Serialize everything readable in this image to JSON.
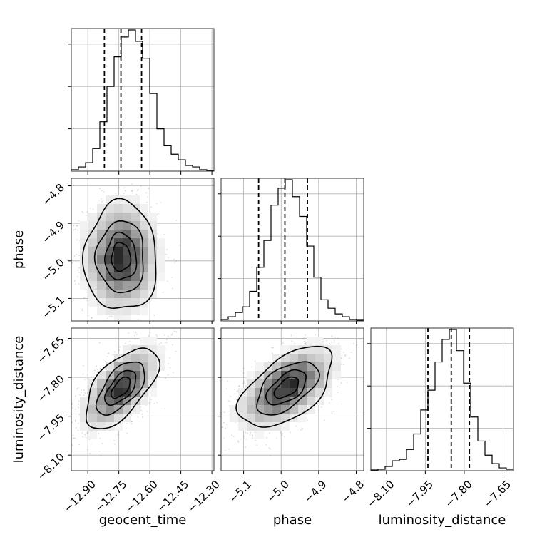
{
  "chart_data": {
    "type": "corner",
    "grid": true,
    "parameters": [
      {
        "name": "geocent_time",
        "label": "geocent_time",
        "range": [
          -12.98,
          -12.29
        ],
        "ticks": [
          -12.9,
          -12.75,
          -12.6,
          -12.45,
          -12.3
        ],
        "tick_labels": [
          "−12.90",
          "−12.75",
          "−12.60",
          "−12.45",
          "−12.30"
        ],
        "quantiles": [
          -12.82,
          -12.74,
          -12.64
        ],
        "hist": {
          "start": -12.98,
          "bin_width": 0.0345,
          "counts": [
            1,
            3,
            6,
            16,
            35,
            60,
            81,
            95,
            100,
            92,
            80,
            55,
            30,
            18,
            12,
            8,
            4,
            3,
            1,
            0.5
          ]
        }
      },
      {
        "name": "phase",
        "label": "phase",
        "range": [
          -5.16,
          -4.78
        ],
        "ticks": [
          -5.1,
          -5.0,
          -4.9,
          -4.8
        ],
        "tick_labels": [
          "−5.1",
          "−5.0",
          "−4.9",
          "−4.8"
        ],
        "quantiles": [
          -5.06,
          -4.99,
          -4.93
        ],
        "hist": {
          "start": -5.16,
          "bin_width": 0.019,
          "counts": [
            1,
            3,
            6,
            10,
            21,
            38,
            57,
            82,
            94,
            100,
            88,
            74,
            53,
            31,
            15,
            9,
            5,
            3,
            1,
            0.5
          ]
        }
      },
      {
        "name": "luminosity_distance",
        "label": "luminosity_distance",
        "range": [
          -8.16,
          -7.61
        ],
        "ticks": [
          -8.1,
          -7.95,
          -7.8,
          -7.65
        ],
        "tick_labels": [
          "−8.10",
          "−7.95",
          "−7.80",
          "−7.65"
        ],
        "quantiles": [
          -7.94,
          -7.85,
          -7.78
        ],
        "hist": {
          "start": -8.16,
          "bin_width": 0.0275,
          "counts": [
            0.5,
            1,
            3,
            7,
            8,
            15,
            26,
            43,
            57,
            77,
            93,
            100,
            85,
            62,
            38,
            21,
            11,
            5,
            2,
            1
          ]
        }
      }
    ],
    "pairs": [
      {
        "x": "geocent_time",
        "y": "phase",
        "mean": [
          -12.74,
          -4.99
        ],
        "sd": [
          0.085,
          0.07
        ],
        "corr": 0.0
      },
      {
        "x": "geocent_time",
        "y": "luminosity_distance",
        "mean": [
          -12.74,
          -7.84
        ],
        "sd": [
          0.085,
          0.075
        ],
        "corr": 0.6
      },
      {
        "x": "phase",
        "y": "luminosity_distance",
        "mean": [
          -4.985,
          -7.84
        ],
        "sd": [
          0.06,
          0.075
        ],
        "corr": 0.55
      }
    ],
    "contour_levels_sigma": [
      0.5,
      1.0,
      1.5,
      2.0
    ]
  }
}
